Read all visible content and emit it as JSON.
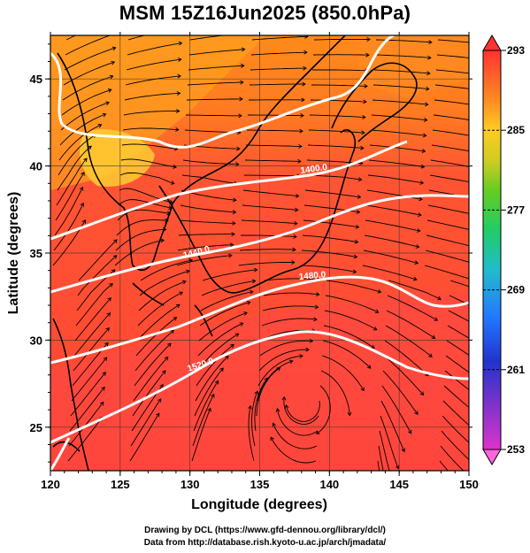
{
  "title": "MSM 15Z16Jun2025 (850.0hPa)",
  "x_axis": {
    "label": "Longitude (degrees)",
    "ticks": [
      "120",
      "125",
      "130",
      "135",
      "140",
      "145",
      "150"
    ],
    "range": [
      120,
      150
    ]
  },
  "y_axis": {
    "label": "Latitude  (degrees)",
    "ticks": [
      "25",
      "30",
      "35",
      "40",
      "45"
    ],
    "range": [
      22.5,
      47.5
    ]
  },
  "colorbar": {
    "ticks": [
      "293",
      "285",
      "277",
      "269",
      "261",
      "253"
    ],
    "range": [
      253,
      293
    ],
    "colors": [
      "#cc22cc",
      "#3333cc",
      "#2288ff",
      "#22bbaa",
      "#22cc44",
      "#aacc22",
      "#eedd22",
      "#ffaa22",
      "#ff6633",
      "#ff3333"
    ]
  },
  "contours": [
    {
      "label": "1400.0"
    },
    {
      "label": "1440.0"
    },
    {
      "label": "1480.0"
    },
    {
      "label": "1520.0"
    }
  ],
  "footer": {
    "line1": "Drawing by DCL (https://www.gfd-dennou.org/library/dcl/)",
    "line2": "Data from http://database.rish.kyoto-u.ac.jp/arch/jmadata/"
  },
  "colors": {
    "warm": "#ff4433",
    "mid": "#ff8822",
    "cool": "#ffcc22",
    "contour": "#ffffff",
    "coast": "#000000"
  }
}
